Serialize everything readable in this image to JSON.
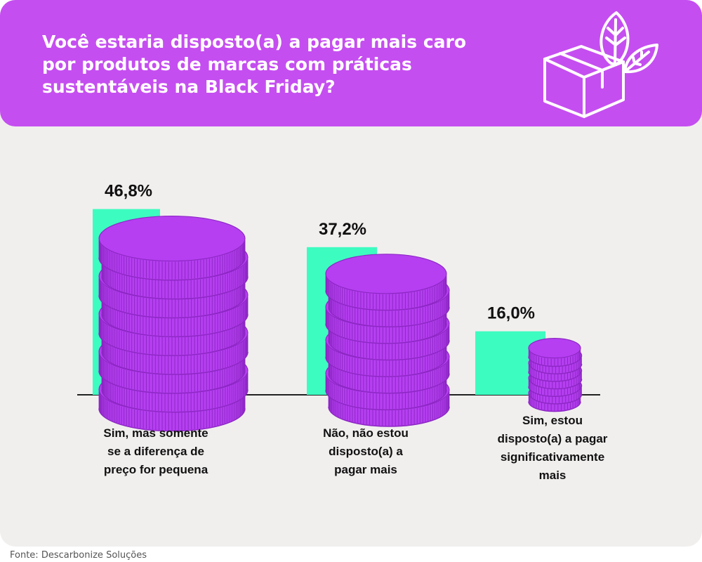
{
  "header": {
    "title": "Você estaria disposto(a) a pagar mais caro por produtos de marcas com práticas sustentáveis na Black Friday?",
    "icon": "sustainable-box-leaves-icon"
  },
  "colors": {
    "header_bg": "#c54ef0",
    "coin": "#b63ff2",
    "coin_dark": "#8d27c4",
    "bar": "#3dfcc0",
    "panel_bg": "#f1efee"
  },
  "chart_data": {
    "type": "bar",
    "categories": [
      "Sim, mas somente se a diferença de preço for pequena",
      "Não, não estou disposto(a) a pagar mais",
      "Sim, estou disposto(a) a pagar significativamente mais"
    ],
    "category_lines": [
      [
        "Sim, mas somente",
        "se a diferença de",
        "preço for pequena"
      ],
      [
        "Não, não estou",
        "disposto(a) a",
        "pagar mais"
      ],
      [
        "Sim, estou",
        "disposto(a) a pagar",
        "significativamente",
        "mais"
      ]
    ],
    "values": [
      46.8,
      37.2,
      16.0
    ],
    "value_labels": [
      "46,8%",
      "37,2%",
      "16,0%"
    ],
    "ylim": [
      0,
      50
    ],
    "grid": false,
    "legend": "none"
  },
  "footer": {
    "source": "Fonte: Descarbonize Soluções"
  }
}
